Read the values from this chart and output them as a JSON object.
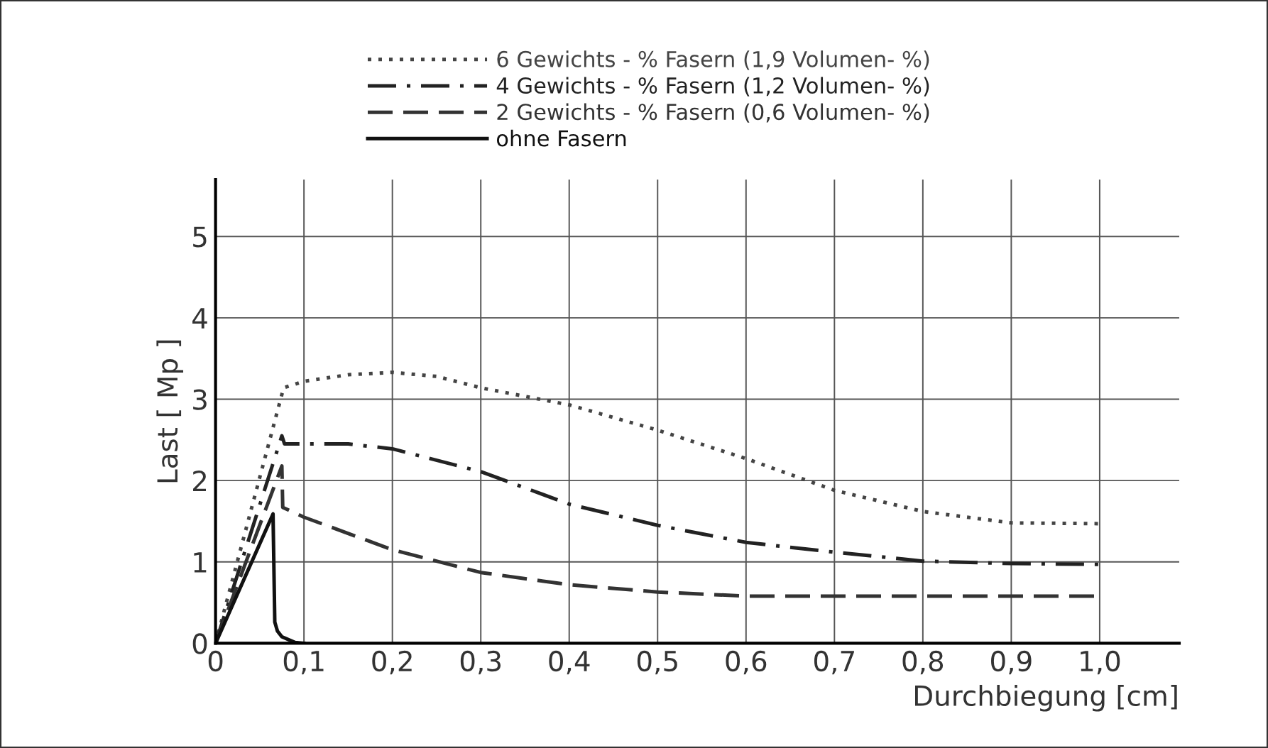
{
  "chart_data": {
    "type": "line",
    "xlabel": "Durchbiegung [cm]",
    "ylabel": "Last [ Mp ]",
    "xlim": [
      0,
      1.09
    ],
    "ylim": [
      0,
      5.7
    ],
    "xticks": [
      0,
      {
        "value": 0.1,
        "label": "0,1"
      },
      {
        "value": 0.2,
        "label": "0,2"
      },
      {
        "value": 0.3,
        "label": "0,3"
      },
      {
        "value": 0.4,
        "label": "0,4"
      },
      {
        "value": 0.5,
        "label": "0,5"
      },
      {
        "value": 0.6,
        "label": "0,6"
      },
      {
        "value": 0.7,
        "label": "0,7"
      },
      {
        "value": 0.8,
        "label": "0,8"
      },
      {
        "value": 0.9,
        "label": "0,9"
      },
      {
        "value": 1.0,
        "label": "1,0"
      }
    ],
    "yticks": [
      0,
      1,
      2,
      3,
      4,
      5
    ],
    "grid": true,
    "legend": "top",
    "marker": "none",
    "series": [
      {
        "name": "6 Gewichts - % Fasern (1,9 Volumen- %)",
        "color": "#444444",
        "line_style": "dotted",
        "x": [
          0,
          0.077,
          0.1,
          0.15,
          0.2,
          0.25,
          0.3,
          0.4,
          0.5,
          0.6,
          0.7,
          0.8,
          0.9,
          1.0
        ],
        "values": [
          0,
          3.14,
          3.22,
          3.3,
          3.33,
          3.28,
          3.14,
          2.93,
          2.62,
          2.27,
          1.88,
          1.62,
          1.48,
          1.47
        ]
      },
      {
        "name": "4 Gewichts - % Fasern (1,2 Volumen- %)",
        "color": "#222222",
        "line_style": "dashdot",
        "x": [
          0,
          0.075,
          0.078,
          0.1,
          0.15,
          0.2,
          0.3,
          0.4,
          0.5,
          0.6,
          0.7,
          0.8,
          0.9,
          1.0
        ],
        "values": [
          0,
          2.55,
          2.45,
          2.45,
          2.45,
          2.39,
          2.11,
          1.71,
          1.45,
          1.24,
          1.12,
          1.01,
          0.98,
          0.97
        ]
      },
      {
        "name": "2 Gewichts - % Fasern (0,6 Volumen- %)",
        "color": "#333333",
        "line_style": "dashed",
        "x": [
          0,
          0.075,
          0.076,
          0.1,
          0.2,
          0.3,
          0.4,
          0.5,
          0.6,
          0.7,
          0.8,
          0.9,
          1.0
        ],
        "values": [
          0,
          2.18,
          1.67,
          1.55,
          1.15,
          0.87,
          0.72,
          0.63,
          0.58,
          0.58,
          0.58,
          0.58,
          0.58
        ]
      },
      {
        "name": "ohne Fasern",
        "color": "#111111",
        "line_style": "solid",
        "x": [
          0,
          0.065,
          0.067,
          0.07,
          0.075,
          0.09,
          0.1
        ],
        "values": [
          0,
          1.59,
          0.26,
          0.15,
          0.08,
          0.01,
          0
        ]
      }
    ]
  }
}
